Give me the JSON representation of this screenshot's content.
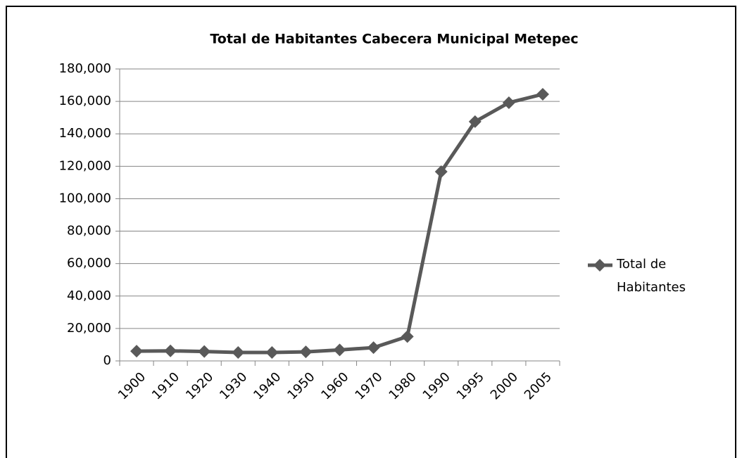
{
  "chart_data": {
    "type": "line",
    "title": "Total de Habitantes Cabecera Municipal Metepec",
    "categories": [
      "1900",
      "1910",
      "1920",
      "1930",
      "1940",
      "1950",
      "1960",
      "1970",
      "1980",
      "1990",
      "1995",
      "2000",
      "2005"
    ],
    "series": [
      {
        "name": "Total de Habitantes",
        "color": "#595959",
        "values": [
          6000,
          6200,
          5800,
          5200,
          5200,
          5600,
          6800,
          8200,
          15000,
          116700,
          147500,
          159200,
          164400
        ]
      }
    ],
    "ylim": [
      0,
      180000
    ],
    "yticks": [
      0,
      {
        "value": 20000,
        "label": "20,000"
      },
      {
        "value": 40000,
        "label": "40,000"
      },
      {
        "value": 60000,
        "label": "60,000"
      },
      {
        "value": 80000,
        "label": "80,000"
      },
      {
        "value": 100000,
        "label": "100,000"
      },
      {
        "value": 120000,
        "label": "120,000"
      },
      {
        "value": 140000,
        "label": "140,000"
      },
      {
        "value": 160000,
        "label": "160,000"
      },
      {
        "value": 180000,
        "label": "180,000"
      }
    ],
    "grid": true,
    "legend": "right"
  }
}
